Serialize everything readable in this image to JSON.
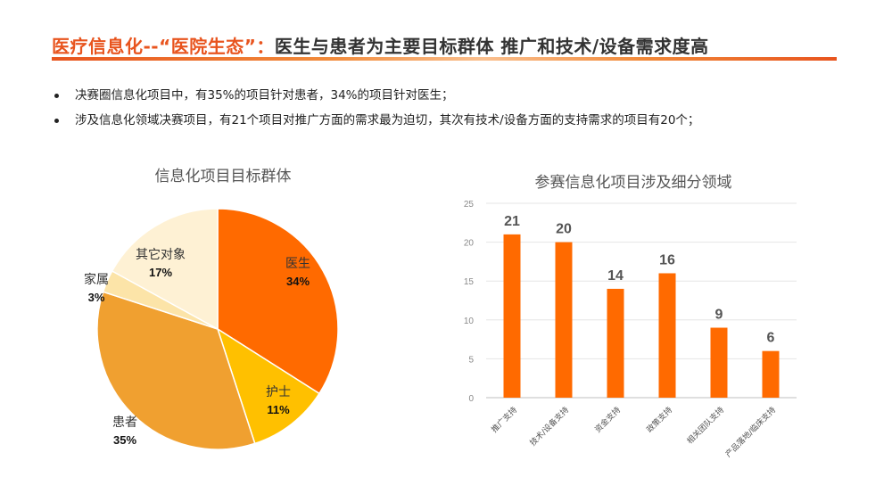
{
  "header": {
    "title_accent": "医疗信息化--“医院生态”：",
    "title_main": "医生与患者为主要目标群体 推广和技术/设备需求度高"
  },
  "bullets": [
    "决赛圈信息化项目中，有35%的项目针对患者，34%的项目针对医生；",
    "涉及信息化领域决赛项目，有21个项目对推广方面的需求最为迫切，其次有技术/设备方面的支持需求的项目有20个；"
  ],
  "colors": {
    "accent": "#E8541E",
    "bar": "#FF6A00",
    "pie_doctor": "#FF6A00",
    "pie_nurse": "#FFC000",
    "pie_patient": "#F0A030",
    "pie_family": "#FCE4A8",
    "pie_other": "#FEF1D4"
  },
  "chart_data": [
    {
      "type": "pie",
      "title": "信息化项目目标群体",
      "slices": [
        {
          "label": "医生",
          "value": 34,
          "value_label": "34%",
          "color": "#FF6A00"
        },
        {
          "label": "护士",
          "value": 11,
          "value_label": "11%",
          "color": "#FFC000"
        },
        {
          "label": "患者",
          "value": 35,
          "value_label": "35%",
          "color": "#F0A030"
        },
        {
          "label": "家属",
          "value": 3,
          "value_label": "3%",
          "color": "#FCE4A8"
        },
        {
          "label": "其它对象",
          "value": 17,
          "value_label": "17%",
          "color": "#FEF1D4"
        }
      ]
    },
    {
      "type": "bar",
      "title": "参赛信息化项目涉及细分领域",
      "categories": [
        "推广支持",
        "技术/设备支持",
        "资金支持",
        "政策支持",
        "相关团队支持",
        "产品落地/临床支持"
      ],
      "values": [
        21,
        20,
        14,
        16,
        9,
        6
      ],
      "ylim": [
        0,
        25
      ],
      "yticks": [
        0,
        5,
        10,
        15,
        20,
        25
      ],
      "grid": true
    }
  ]
}
